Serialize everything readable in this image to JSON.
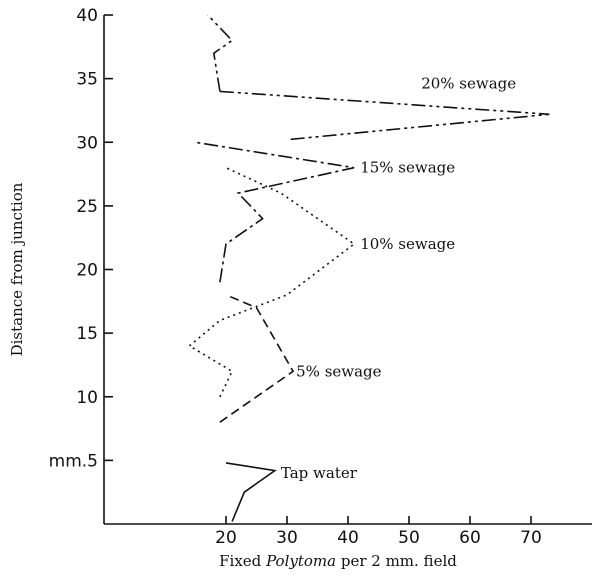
{
  "chart_data": {
    "type": "line",
    "xlabel_prefix": "Fixed ",
    "xlabel_italic": "Polytoma",
    "xlabel_suffix": " per 2 mm. field",
    "ylabel": "Distance from junction",
    "xlim": [
      0,
      80
    ],
    "ylim": [
      0,
      40
    ],
    "x_ticks": [
      20,
      30,
      40,
      50,
      60,
      70
    ],
    "y_ticks": [
      {
        "value": 40,
        "label": "40"
      },
      {
        "value": 35,
        "label": "35"
      },
      {
        "value": 30,
        "label": "30"
      },
      {
        "value": 25,
        "label": "25"
      },
      {
        "value": 20,
        "label": "20"
      },
      {
        "value": 15,
        "label": "15"
      },
      {
        "value": 10,
        "label": "10"
      },
      {
        "value": 5,
        "label": "mm.5"
      }
    ],
    "series": [
      {
        "name": "Tap water",
        "dash": "",
        "points": [
          [
            21,
            0.2
          ],
          [
            23,
            2.5
          ],
          [
            28,
            4.2
          ],
          [
            20,
            4.8
          ]
        ],
        "label_x": 29,
        "label_y": 4
      },
      {
        "name": "5% sewage",
        "dash": "9,5",
        "points": [
          [
            19,
            8
          ],
          [
            31,
            12
          ],
          [
            25,
            17
          ],
          [
            20,
            18
          ]
        ],
        "label_x": 31.5,
        "label_y": 12
      },
      {
        "name": "10% sewage",
        "dash": "2,4",
        "points": [
          [
            19,
            10
          ],
          [
            21,
            12
          ],
          [
            14,
            14
          ],
          [
            19,
            16
          ],
          [
            30,
            18
          ],
          [
            41,
            22
          ],
          [
            29,
            26
          ],
          [
            20,
            28
          ]
        ],
        "label_x": 42,
        "label_y": 22
      },
      {
        "name": "15% sewage",
        "dash": "14,4,3,4",
        "points": [
          [
            19,
            19
          ],
          [
            20,
            22
          ],
          [
            26,
            24
          ],
          [
            22,
            26
          ],
          [
            41,
            28
          ],
          [
            15,
            30
          ]
        ],
        "label_x": 42,
        "label_y": 28
      },
      {
        "name": "20% sewage",
        "dash": "14,4,3,4,3,4",
        "points": [
          [
            19,
            34
          ],
          [
            73,
            32.2
          ],
          [
            30,
            30.2
          ]
        ],
        "label_x": 52,
        "label_y": 34.6
      },
      {
        "name": "",
        "dash": "14,4,3,4,3,4",
        "points": [
          [
            19,
            34
          ],
          [
            18,
            37
          ],
          [
            21,
            38
          ],
          [
            17,
            40
          ]
        ],
        "label_x": null,
        "label_y": null
      }
    ]
  }
}
